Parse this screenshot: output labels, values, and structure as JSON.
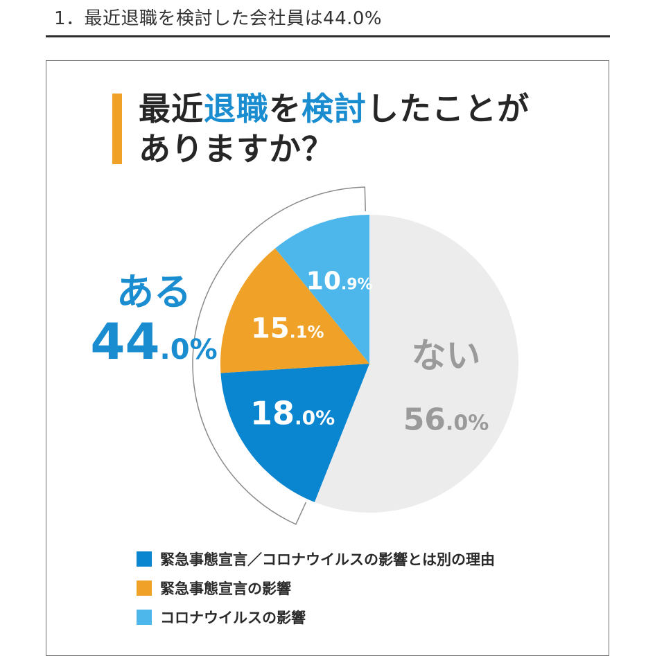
{
  "page": {
    "section_title": "1．最近退職を検討した会社員は44.0%"
  },
  "question": {
    "part1": "最近",
    "part2": "退職",
    "part3": "を",
    "part4": "検討",
    "part5": "したことが",
    "line2": "ありますか？"
  },
  "colors": {
    "accent_orange": "#f0a127",
    "blue_dark": "#0a85d0",
    "orange": "#f0a127",
    "blue_light": "#4db7ec",
    "gray": "#ececec",
    "gray_text": "#9a9a9a"
  },
  "chart_data": {
    "type": "pie",
    "slices": [
      {
        "label": "ない",
        "value": 56.0,
        "int": "56",
        "dec": ".0%",
        "color": "#ececec"
      },
      {
        "label": "緊急事態宣言／コロナウイルスの影響とは別の理由",
        "value": 18.0,
        "int": "18",
        "dec": ".0%",
        "color": "#0a85d0"
      },
      {
        "label": "緊急事態宣言の影響",
        "value": 15.1,
        "int": "15",
        "dec": ".1%",
        "color": "#f0a127"
      },
      {
        "label": "コロナウイルスの影響",
        "value": 10.9,
        "int": "10",
        "dec": ".9%",
        "color": "#4db7ec"
      }
    ],
    "group": {
      "label": "ある",
      "int": "44",
      "dec": ".0%",
      "value": 44.0
    },
    "no_label": "ない",
    "legend_position": "bottom-left",
    "legend": [
      {
        "label": "緊急事態宣言／コロナウイルスの影響とは別の理由",
        "color": "#0a85d0"
      },
      {
        "label": "緊急事態宣言の影響",
        "color": "#f0a127"
      },
      {
        "label": "コロナウイルスの影響",
        "color": "#4db7ec"
      }
    ]
  }
}
